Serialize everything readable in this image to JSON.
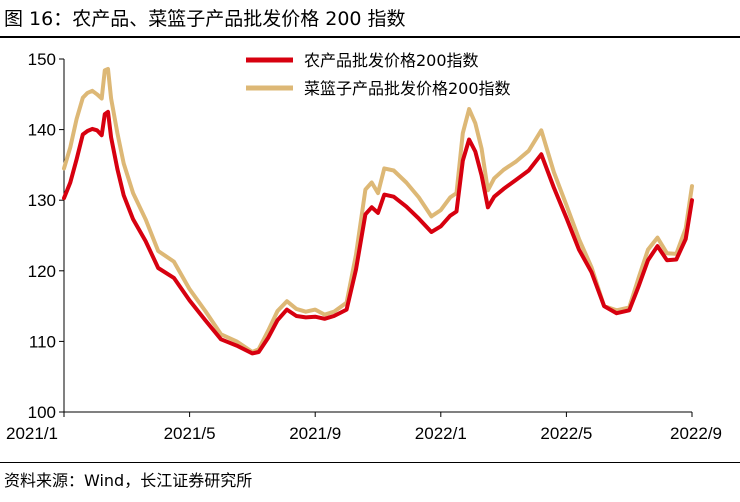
{
  "figure": {
    "title": "图 16：农产品、菜篮子产品批发价格 200 指数",
    "source": "资料来源：Wind，长江证券研究所"
  },
  "chart_data": {
    "type": "line",
    "title": "农产品、菜篮子产品批发价格 200 指数",
    "xlabel": "",
    "ylabel": "",
    "ylim": [
      100,
      150
    ],
    "yticks": [
      100,
      110,
      120,
      130,
      140,
      150
    ],
    "xlim": [
      0,
      20
    ],
    "xtick_positions": [
      0,
      4,
      8,
      12,
      16,
      20
    ],
    "xtick_labels": [
      "2021/1",
      "2021/5",
      "2021/9",
      "2022/1",
      "2022/5",
      "2022/9"
    ],
    "grid": false,
    "legend_position": "top",
    "series": [
      {
        "name": "农产品批发价格200指数",
        "color": "#D7000F",
        "x": [
          0,
          0.2,
          0.4,
          0.6,
          0.75,
          0.9,
          1.05,
          1.2,
          1.3,
          1.4,
          1.5,
          1.7,
          1.9,
          2.2,
          2.6,
          3.0,
          3.5,
          4.0,
          4.5,
          5.0,
          5.5,
          6.0,
          6.2,
          6.5,
          6.8,
          7.1,
          7.4,
          7.7,
          8.0,
          8.3,
          8.6,
          9.0,
          9.3,
          9.6,
          9.8,
          10.0,
          10.2,
          10.5,
          10.9,
          11.3,
          11.7,
          12.0,
          12.3,
          12.5,
          12.7,
          12.9,
          13.1,
          13.3,
          13.5,
          13.7,
          14.0,
          14.4,
          14.8,
          15.2,
          15.6,
          16.0,
          16.4,
          16.8,
          17.2,
          17.6,
          18.0,
          18.3,
          18.6,
          18.9,
          19.2,
          19.5,
          19.8,
          20.0
        ],
        "values": [
          130.3,
          132.5,
          135.8,
          139.3,
          139.8,
          140.1,
          139.9,
          139.2,
          142.2,
          142.5,
          138.9,
          134.4,
          130.7,
          127.3,
          124.2,
          120.4,
          119.0,
          115.8,
          113.0,
          110.3,
          109.4,
          108.3,
          108.5,
          110.5,
          113.0,
          114.5,
          113.6,
          113.4,
          113.5,
          113.2,
          113.6,
          114.5,
          120.2,
          128.0,
          129.0,
          128.2,
          130.8,
          130.5,
          129.1,
          127.4,
          125.5,
          126.3,
          127.8,
          128.4,
          135.6,
          138.6,
          136.9,
          133.5,
          129.0,
          130.5,
          131.6,
          132.9,
          134.2,
          136.5,
          131.8,
          127.5,
          123.0,
          119.8,
          115.0,
          114.0,
          114.4,
          117.8,
          121.5,
          123.5,
          121.5,
          121.6,
          124.5,
          130.0
        ]
      },
      {
        "name": "菜篮子产品批发价格200指数",
        "color": "#DDB876",
        "x": [
          0,
          0.2,
          0.4,
          0.6,
          0.75,
          0.9,
          1.05,
          1.2,
          1.3,
          1.4,
          1.5,
          1.7,
          1.9,
          2.2,
          2.6,
          3.0,
          3.5,
          4.0,
          4.5,
          5.0,
          5.5,
          6.0,
          6.2,
          6.5,
          6.8,
          7.1,
          7.4,
          7.7,
          8.0,
          8.3,
          8.6,
          9.0,
          9.3,
          9.6,
          9.8,
          10.0,
          10.2,
          10.5,
          10.9,
          11.3,
          11.7,
          12.0,
          12.3,
          12.5,
          12.7,
          12.9,
          13.1,
          13.3,
          13.5,
          13.7,
          14.0,
          14.4,
          14.8,
          15.2,
          15.6,
          16.0,
          16.4,
          16.8,
          17.2,
          17.6,
          18.0,
          18.3,
          18.6,
          18.9,
          19.2,
          19.5,
          19.8,
          20.0
        ],
        "values": [
          134.5,
          137.5,
          141.5,
          144.5,
          145.2,
          145.5,
          145.0,
          144.4,
          148.4,
          148.6,
          144.4,
          139.5,
          135.2,
          131.0,
          127.3,
          122.8,
          121.3,
          117.4,
          114.3,
          111.0,
          110.0,
          108.5,
          108.9,
          111.5,
          114.3,
          115.7,
          114.6,
          114.2,
          114.5,
          113.8,
          114.2,
          115.5,
          122.3,
          131.5,
          132.5,
          131.0,
          134.5,
          134.2,
          132.5,
          130.4,
          127.7,
          128.6,
          130.4,
          131.0,
          139.5,
          142.9,
          140.9,
          137.3,
          131.4,
          133.1,
          134.3,
          135.5,
          137.0,
          139.9,
          134.0,
          129.3,
          124.5,
          120.5,
          115.0,
          114.4,
          114.8,
          119.0,
          123.0,
          124.7,
          122.5,
          122.4,
          126.0,
          132.0
        ]
      }
    ]
  }
}
